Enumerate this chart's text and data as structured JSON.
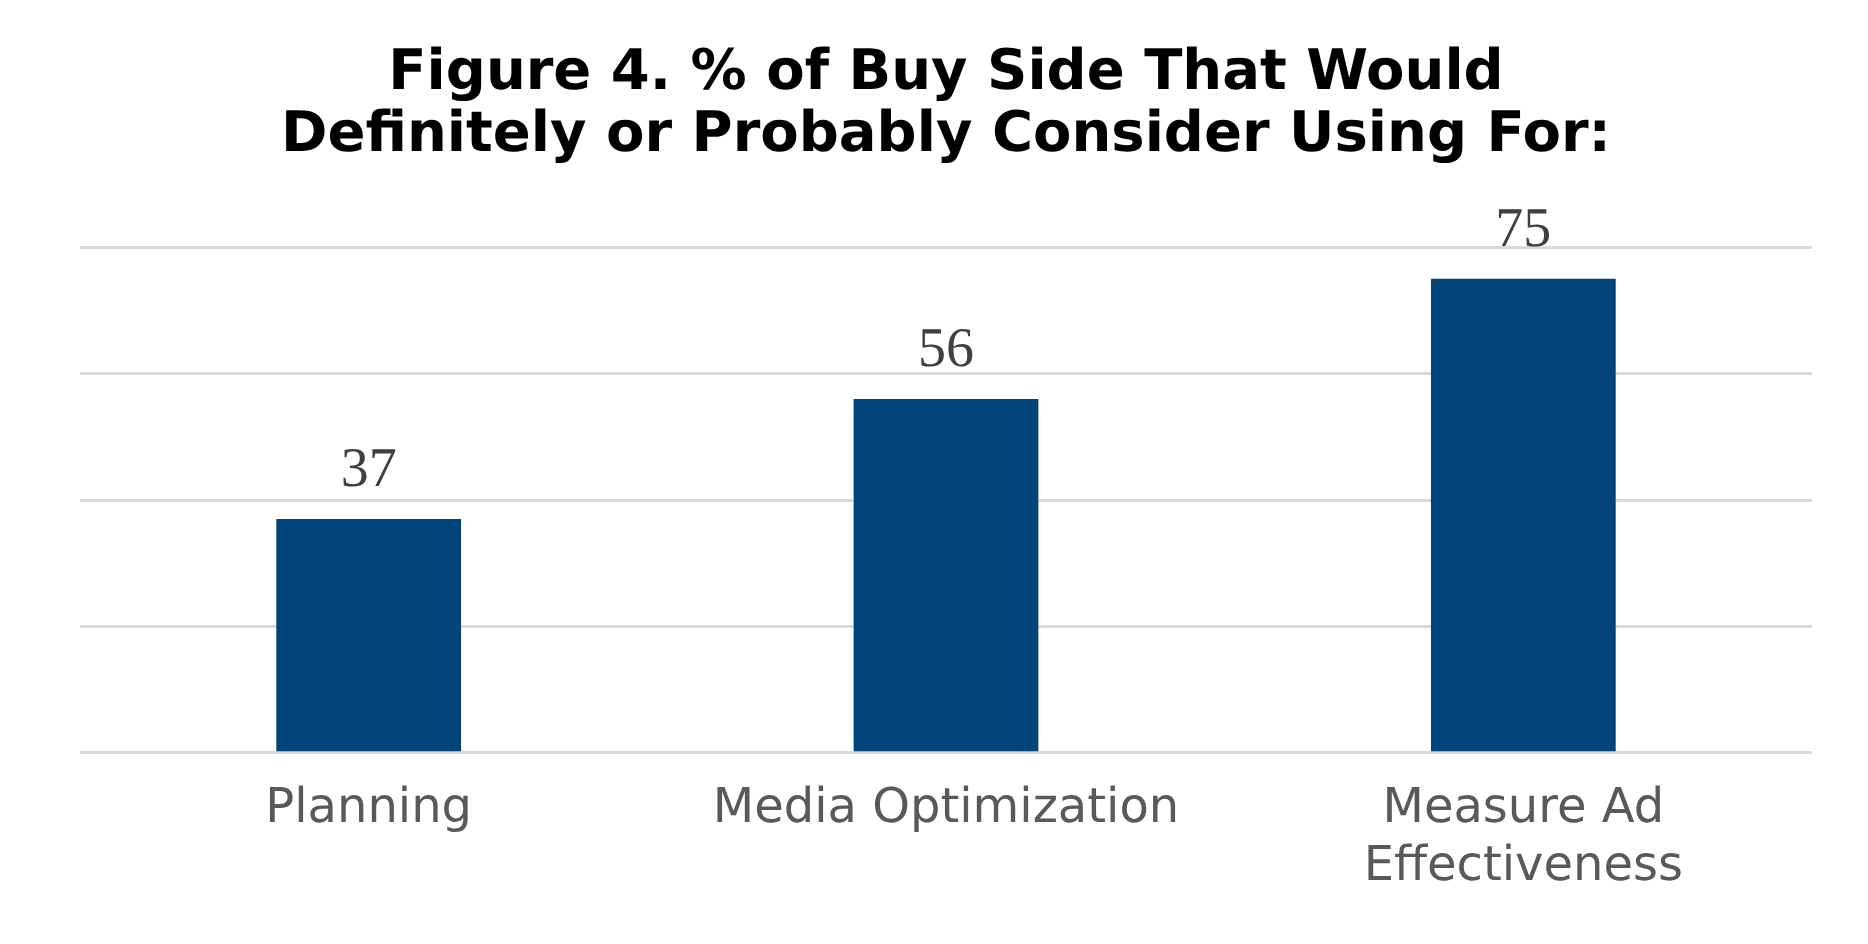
{
  "chart_data": {
    "type": "bar",
    "title": "Figure 4. % of Buy Side That Would Definitely or Probably Consider Using For:",
    "categories": [
      "Planning",
      "Media Optimization",
      "Measure Ad Effectiveness"
    ],
    "values": [
      37,
      56,
      75
    ],
    "color": "#00447a",
    "ylim": [
      0,
      80
    ],
    "yticks": [
      {
        "value": 0,
        "label": null
      },
      {
        "value": 20,
        "label": null
      },
      {
        "value": 40,
        "label": null
      },
      {
        "value": 60,
        "label": null
      },
      {
        "value": 80,
        "label": null
      }
    ],
    "tick_labels": "x",
    "grid": "y",
    "data_labels": true,
    "legend": false
  }
}
